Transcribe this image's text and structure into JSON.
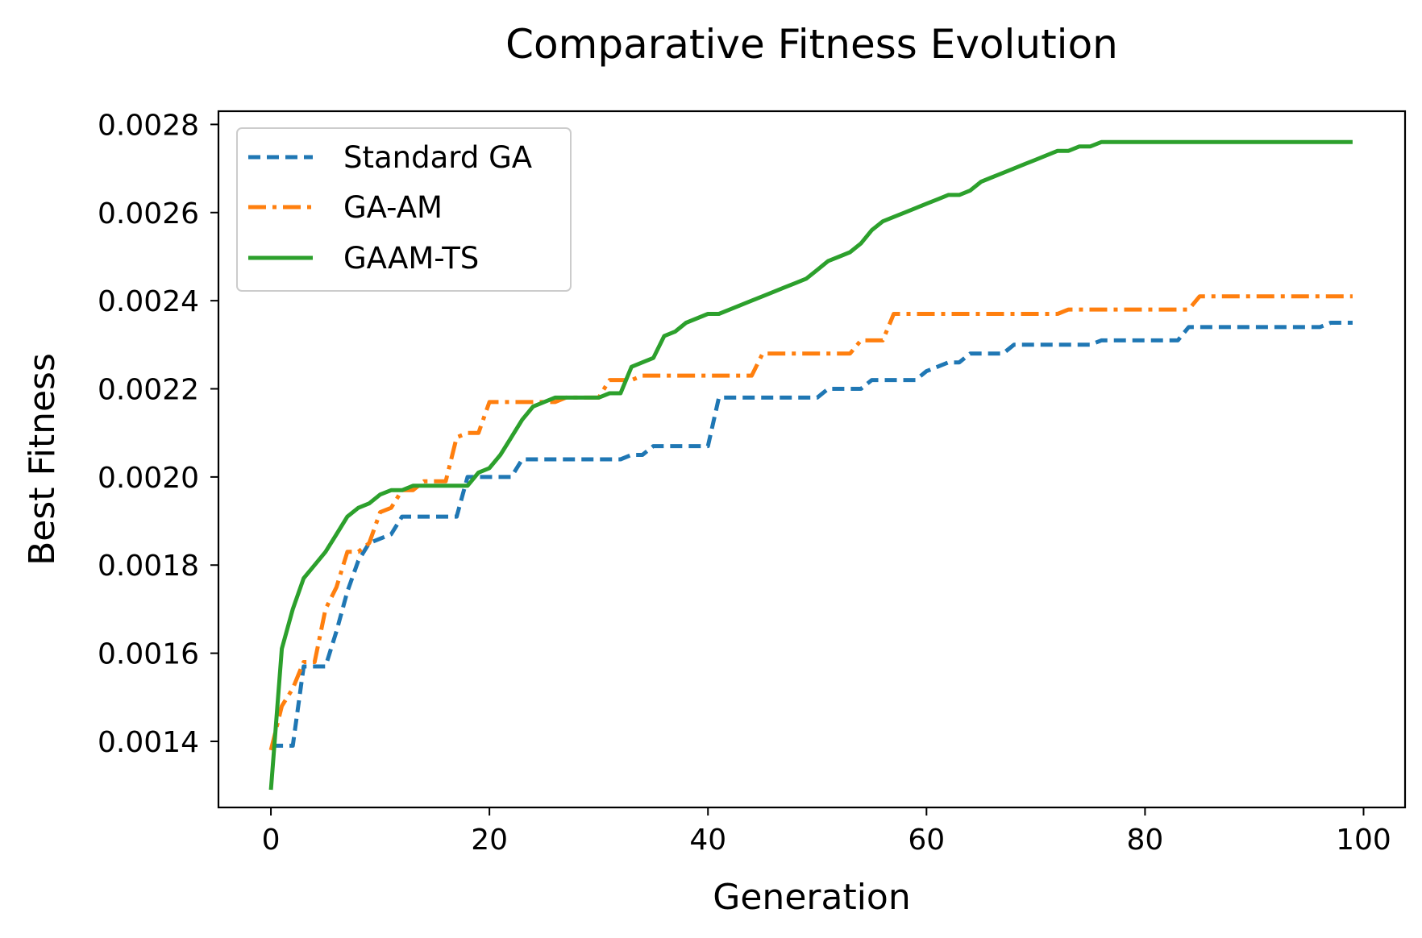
{
  "chart_data": {
    "type": "line",
    "title": "Comparative Fitness Evolution",
    "xlabel": "Generation",
    "ylabel": "Best Fitness",
    "xlim": [
      -4.8,
      103.8
    ],
    "ylim": [
      0.00125,
      0.00283
    ],
    "xticks": [
      0,
      20,
      40,
      60,
      80,
      100
    ],
    "xtick_labels": [
      "0",
      "20",
      "40",
      "60",
      "80",
      "100"
    ],
    "yticks": [
      0.0014,
      0.0016,
      0.0018,
      0.002,
      0.0022,
      0.0024,
      0.0026,
      0.0028
    ],
    "ytick_labels": [
      "0.0014",
      "0.0016",
      "0.0018",
      "0.0020",
      "0.0022",
      "0.0024",
      "0.0026",
      "0.0028"
    ],
    "grid": false,
    "legend_position": "top-left",
    "series": [
      {
        "name": "Standard GA",
        "color": "#1f77b4",
        "style": "dashed",
        "x": [
          0,
          1,
          2,
          3,
          4,
          5,
          6,
          7,
          8,
          9,
          10,
          11,
          12,
          13,
          14,
          15,
          16,
          17,
          18,
          19,
          20,
          21,
          22,
          23,
          24,
          25,
          26,
          27,
          28,
          29,
          30,
          31,
          32,
          33,
          34,
          35,
          36,
          37,
          38,
          39,
          40,
          41,
          42,
          43,
          44,
          45,
          46,
          47,
          48,
          49,
          50,
          51,
          52,
          53,
          54,
          55,
          56,
          57,
          58,
          59,
          60,
          61,
          62,
          63,
          64,
          65,
          66,
          67,
          68,
          69,
          70,
          71,
          72,
          73,
          74,
          75,
          76,
          77,
          78,
          79,
          80,
          81,
          82,
          83,
          84,
          85,
          86,
          87,
          88,
          89,
          90,
          91,
          92,
          93,
          94,
          95,
          96,
          97,
          98,
          99
        ],
        "y": [
          0.00139,
          0.00139,
          0.00139,
          0.00157,
          0.00157,
          0.00157,
          0.00165,
          0.00174,
          0.00181,
          0.00185,
          0.00186,
          0.00187,
          0.00191,
          0.00191,
          0.00191,
          0.00191,
          0.00191,
          0.00191,
          0.002,
          0.002,
          0.002,
          0.002,
          0.002,
          0.00204,
          0.00204,
          0.00204,
          0.00204,
          0.00204,
          0.00204,
          0.00204,
          0.00204,
          0.00204,
          0.00204,
          0.00205,
          0.00205,
          0.00207,
          0.00207,
          0.00207,
          0.00207,
          0.00207,
          0.00207,
          0.00218,
          0.00218,
          0.00218,
          0.00218,
          0.00218,
          0.00218,
          0.00218,
          0.00218,
          0.00218,
          0.00218,
          0.0022,
          0.0022,
          0.0022,
          0.0022,
          0.00222,
          0.00222,
          0.00222,
          0.00222,
          0.00222,
          0.00224,
          0.00225,
          0.00226,
          0.00226,
          0.00228,
          0.00228,
          0.00228,
          0.00228,
          0.0023,
          0.0023,
          0.0023,
          0.0023,
          0.0023,
          0.0023,
          0.0023,
          0.0023,
          0.00231,
          0.00231,
          0.00231,
          0.00231,
          0.00231,
          0.00231,
          0.00231,
          0.00231,
          0.00234,
          0.00234,
          0.00234,
          0.00234,
          0.00234,
          0.00234,
          0.00234,
          0.00234,
          0.00234,
          0.00234,
          0.00234,
          0.00234,
          0.00234,
          0.00235,
          0.00235,
          0.00235
        ]
      },
      {
        "name": "GA-AM",
        "color": "#ff7f0e",
        "style": "dashdot",
        "x": [
          0,
          1,
          2,
          3,
          4,
          5,
          6,
          7,
          8,
          9,
          10,
          11,
          12,
          13,
          14,
          15,
          16,
          17,
          18,
          19,
          20,
          21,
          22,
          23,
          24,
          25,
          26,
          27,
          28,
          29,
          30,
          31,
          32,
          33,
          34,
          35,
          36,
          37,
          38,
          39,
          40,
          41,
          42,
          43,
          44,
          45,
          46,
          47,
          48,
          49,
          50,
          51,
          52,
          53,
          54,
          55,
          56,
          57,
          58,
          59,
          60,
          61,
          62,
          63,
          64,
          65,
          66,
          67,
          68,
          69,
          70,
          71,
          72,
          73,
          74,
          75,
          76,
          77,
          78,
          79,
          80,
          81,
          82,
          83,
          84,
          85,
          86,
          87,
          88,
          89,
          90,
          91,
          92,
          93,
          94,
          95,
          96,
          97,
          98,
          99
        ],
        "y": [
          0.00138,
          0.00148,
          0.00152,
          0.00158,
          0.00158,
          0.0017,
          0.00175,
          0.00183,
          0.00183,
          0.00185,
          0.00192,
          0.00193,
          0.00197,
          0.00197,
          0.00199,
          0.00199,
          0.00199,
          0.00209,
          0.0021,
          0.0021,
          0.00217,
          0.00217,
          0.00217,
          0.00217,
          0.00217,
          0.00217,
          0.00217,
          0.00218,
          0.00218,
          0.00218,
          0.00218,
          0.00222,
          0.00222,
          0.00222,
          0.00223,
          0.00223,
          0.00223,
          0.00223,
          0.00223,
          0.00223,
          0.00223,
          0.00223,
          0.00223,
          0.00223,
          0.00223,
          0.00228,
          0.00228,
          0.00228,
          0.00228,
          0.00228,
          0.00228,
          0.00228,
          0.00228,
          0.00228,
          0.00231,
          0.00231,
          0.00231,
          0.00237,
          0.00237,
          0.00237,
          0.00237,
          0.00237,
          0.00237,
          0.00237,
          0.00237,
          0.00237,
          0.00237,
          0.00237,
          0.00237,
          0.00237,
          0.00237,
          0.00237,
          0.00237,
          0.00238,
          0.00238,
          0.00238,
          0.00238,
          0.00238,
          0.00238,
          0.00238,
          0.00238,
          0.00238,
          0.00238,
          0.00238,
          0.00238,
          0.00241,
          0.00241,
          0.00241,
          0.00241,
          0.00241,
          0.00241,
          0.00241,
          0.00241,
          0.00241,
          0.00241,
          0.00241,
          0.00241,
          0.00241,
          0.00241,
          0.00241
        ]
      },
      {
        "name": "GAAM-TS",
        "color": "#2ca02c",
        "style": "solid",
        "x": [
          0,
          1,
          2,
          3,
          4,
          5,
          6,
          7,
          8,
          9,
          10,
          11,
          12,
          13,
          14,
          15,
          16,
          17,
          18,
          19,
          20,
          21,
          22,
          23,
          24,
          25,
          26,
          27,
          28,
          29,
          30,
          31,
          32,
          33,
          34,
          35,
          36,
          37,
          38,
          39,
          40,
          41,
          42,
          43,
          44,
          45,
          46,
          47,
          48,
          49,
          50,
          51,
          52,
          53,
          54,
          55,
          56,
          57,
          58,
          59,
          60,
          61,
          62,
          63,
          64,
          65,
          66,
          67,
          68,
          69,
          70,
          71,
          72,
          73,
          74,
          75,
          76,
          77,
          78,
          79,
          80,
          81,
          82,
          83,
          84,
          85,
          86,
          87,
          88,
          89,
          90,
          91,
          92,
          93,
          94,
          95,
          96,
          97,
          98,
          99
        ],
        "y": [
          0.00129,
          0.00161,
          0.0017,
          0.00177,
          0.0018,
          0.00183,
          0.00187,
          0.00191,
          0.00193,
          0.00194,
          0.00196,
          0.00197,
          0.00197,
          0.00198,
          0.00198,
          0.00198,
          0.00198,
          0.00198,
          0.00198,
          0.00201,
          0.00202,
          0.00205,
          0.00209,
          0.00213,
          0.00216,
          0.00217,
          0.00218,
          0.00218,
          0.00218,
          0.00218,
          0.00218,
          0.00219,
          0.00219,
          0.00225,
          0.00226,
          0.00227,
          0.00232,
          0.00233,
          0.00235,
          0.00236,
          0.00237,
          0.00237,
          0.00238,
          0.00239,
          0.0024,
          0.00241,
          0.00242,
          0.00243,
          0.00244,
          0.00245,
          0.00247,
          0.00249,
          0.0025,
          0.00251,
          0.00253,
          0.00256,
          0.00258,
          0.00259,
          0.0026,
          0.00261,
          0.00262,
          0.00263,
          0.00264,
          0.00264,
          0.00265,
          0.00267,
          0.00268,
          0.00269,
          0.0027,
          0.00271,
          0.00272,
          0.00273,
          0.00274,
          0.00274,
          0.00275,
          0.00275,
          0.00276,
          0.00276,
          0.00276,
          0.00276,
          0.00276,
          0.00276,
          0.00276,
          0.00276,
          0.00276,
          0.00276,
          0.00276,
          0.00276,
          0.00276,
          0.00276,
          0.00276,
          0.00276,
          0.00276,
          0.00276,
          0.00276,
          0.00276,
          0.00276,
          0.00276,
          0.00276,
          0.00276
        ]
      }
    ]
  }
}
